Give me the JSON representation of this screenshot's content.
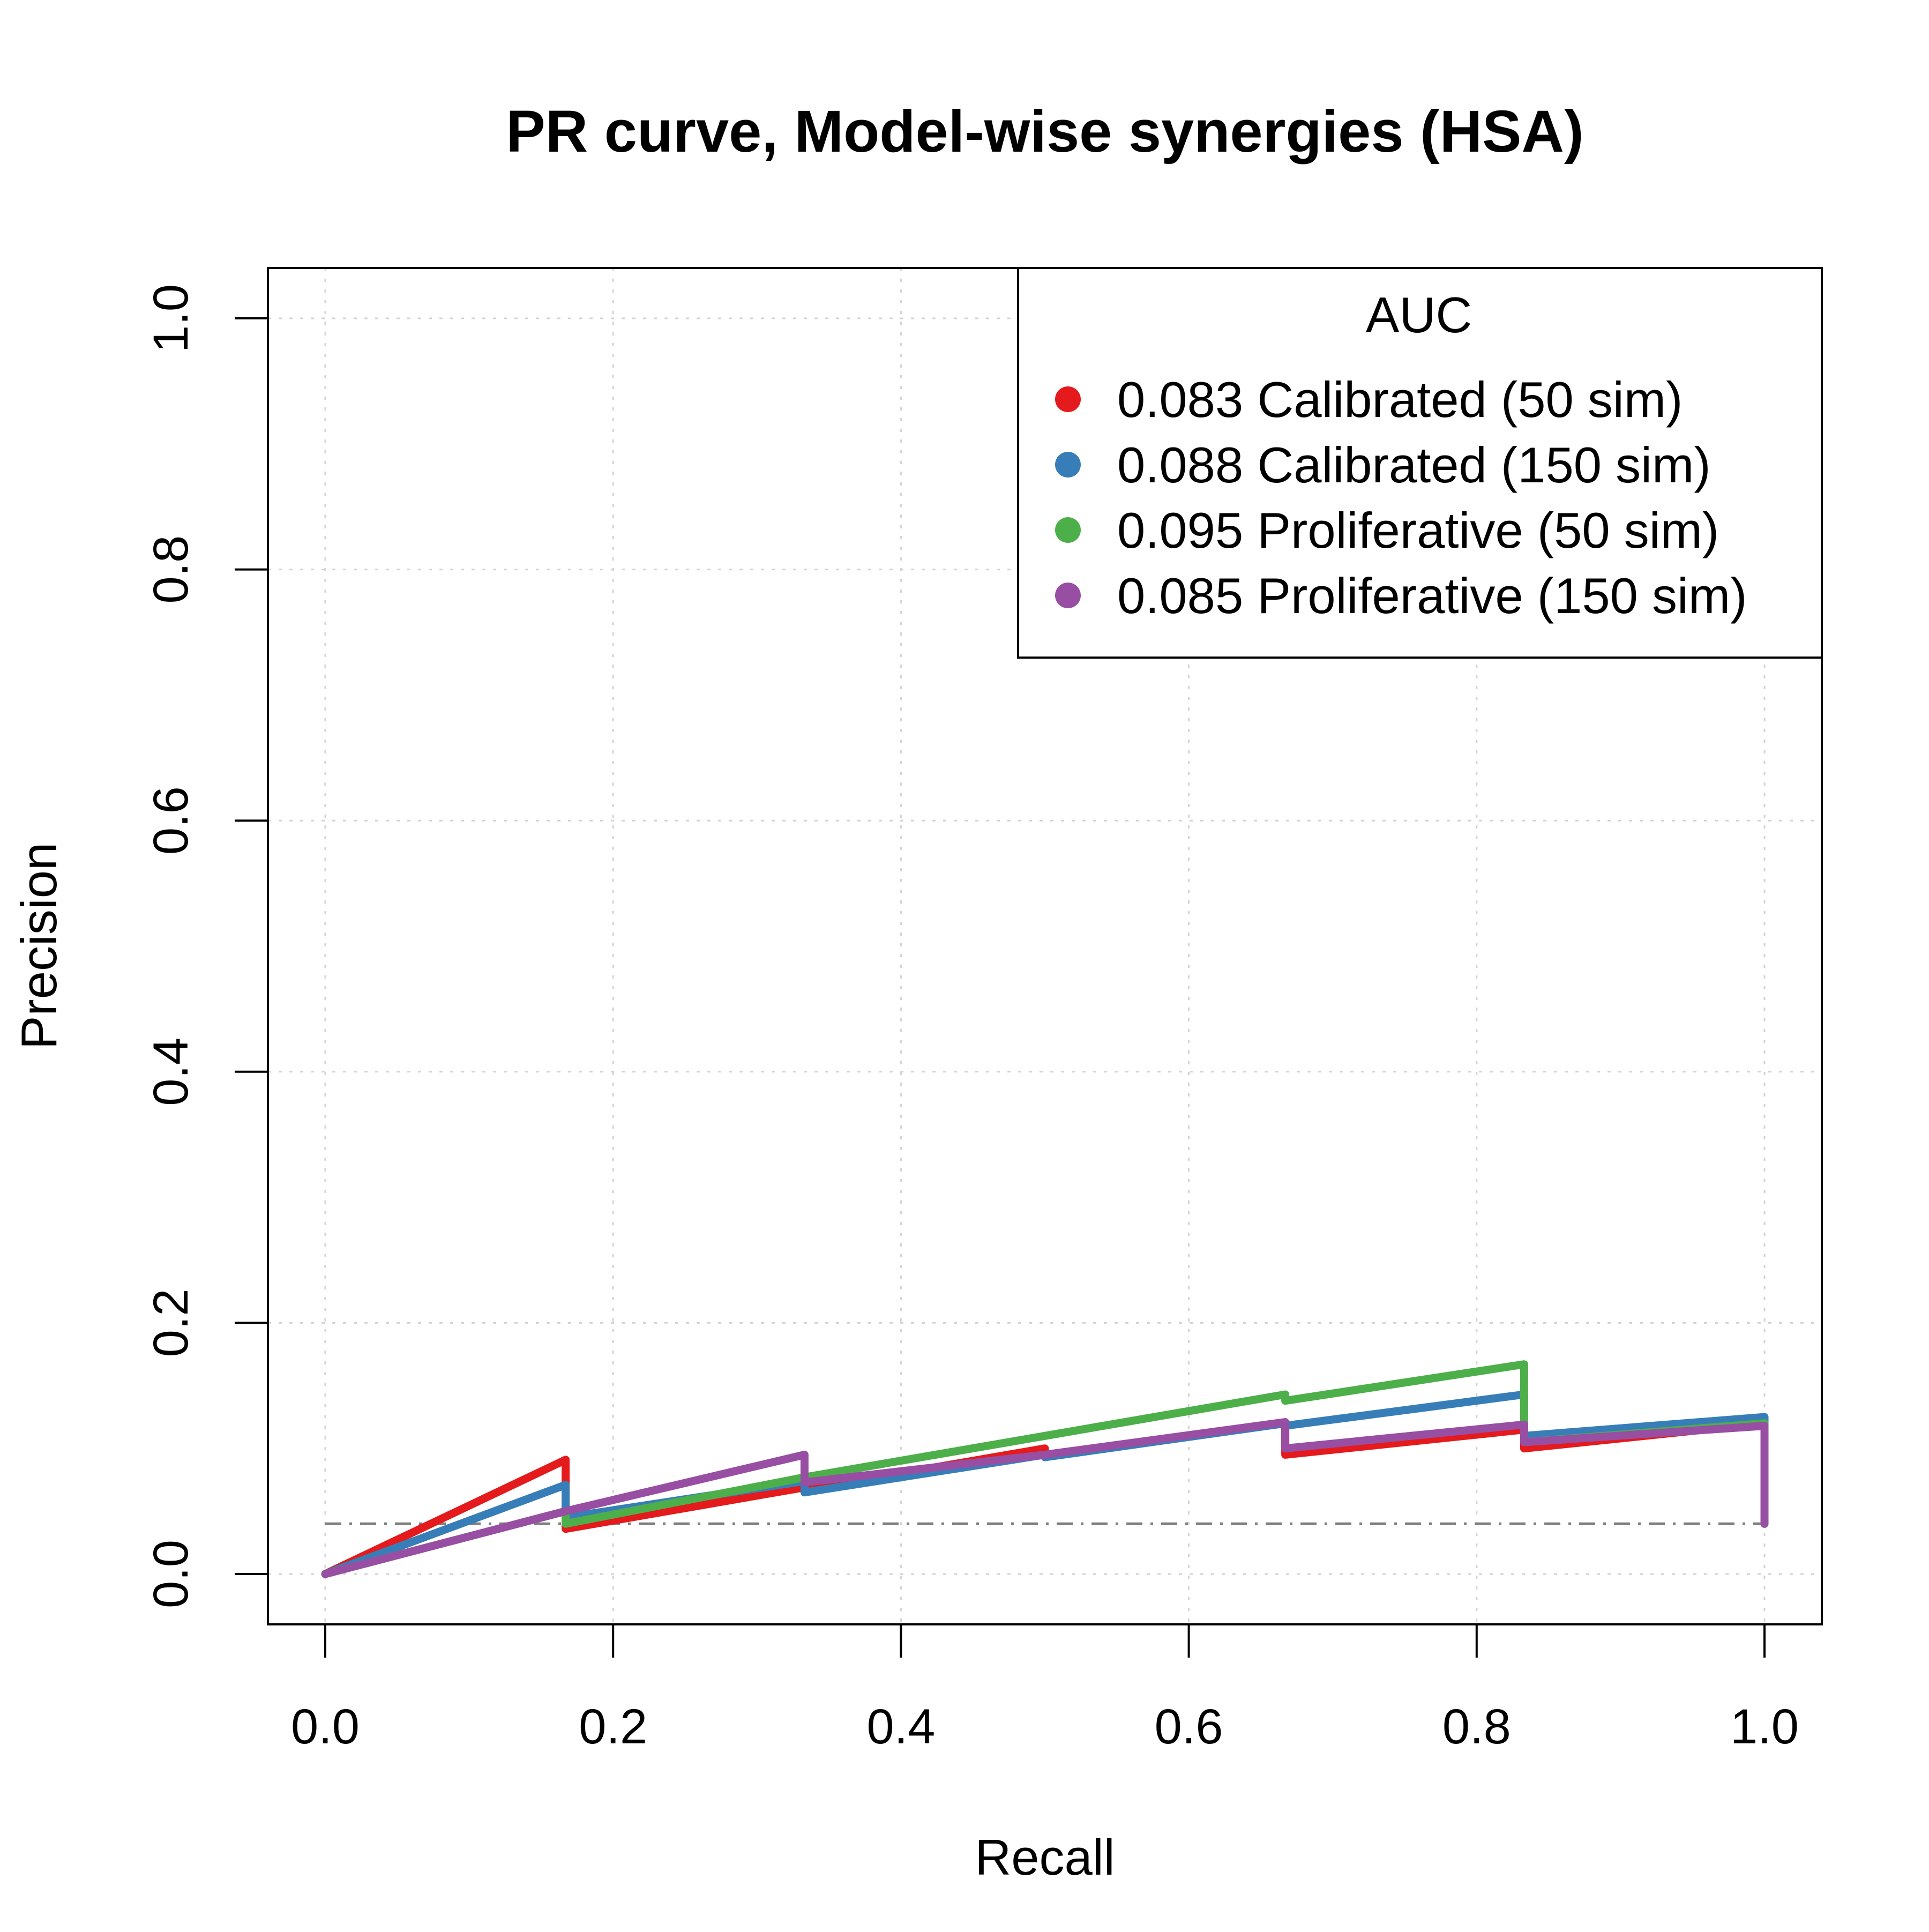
{
  "chart_data": {
    "type": "line",
    "title": "PR curve, Model-wise synergies (HSA)",
    "xlabel": "Recall",
    "ylabel": "Precision",
    "xlim": [
      0.0,
      1.0
    ],
    "ylim": [
      0.0,
      1.0
    ],
    "x_ticks": [
      "0.0",
      "0.2",
      "0.4",
      "0.6",
      "0.8",
      "1.0"
    ],
    "y_ticks": [
      "0.0",
      "0.2",
      "0.4",
      "0.6",
      "0.8",
      "1.0"
    ],
    "grid": true,
    "legend": {
      "title": "AUC",
      "placement": "top-right"
    },
    "baseline": {
      "y": 0.04,
      "style": "dash-dot"
    },
    "series": [
      {
        "name": "0.083 Calibrated (50 sim)",
        "color": "#E41A1C",
        "x": [
          0.0,
          0.167,
          0.167,
          0.333,
          0.333,
          0.5,
          0.5,
          0.667,
          0.667,
          0.833,
          0.833,
          1.0,
          1.0
        ],
        "y": [
          0.0,
          0.091,
          0.036,
          0.069,
          0.067,
          0.1,
          0.095,
          0.12,
          0.095,
          0.115,
          0.1,
          0.12,
          0.04
        ]
      },
      {
        "name": "0.088 Calibrated (150 sim)",
        "color": "#377EB8",
        "x": [
          0.0,
          0.167,
          0.167,
          0.333,
          0.333,
          0.5,
          0.5,
          0.667,
          0.667,
          0.833,
          0.833,
          1.0,
          1.0
        ],
        "y": [
          0.0,
          0.071,
          0.045,
          0.074,
          0.065,
          0.095,
          0.093,
          0.12,
          0.118,
          0.143,
          0.11,
          0.125,
          0.04
        ]
      },
      {
        "name": "0.095 Proliferative (50 sim)",
        "color": "#4DAF4A",
        "x": [
          0.0,
          0.167,
          0.167,
          0.333,
          0.333,
          0.5,
          0.5,
          0.667,
          0.667,
          0.833,
          0.833,
          1.0,
          1.0
        ],
        "y": [
          0.0,
          0.05,
          0.04,
          0.077,
          0.077,
          0.11,
          0.11,
          0.143,
          0.138,
          0.167,
          0.105,
          0.12,
          0.04
        ]
      },
      {
        "name": "0.085 Proliferative (150 sim)",
        "color": "#984EA3",
        "x": [
          0.0,
          0.167,
          0.167,
          0.333,
          0.333,
          0.5,
          0.5,
          0.667,
          0.667,
          0.833,
          0.833,
          1.0,
          1.0
        ],
        "y": [
          0.0,
          0.05,
          0.05,
          0.095,
          0.073,
          0.095,
          0.095,
          0.121,
          0.1,
          0.119,
          0.105,
          0.118,
          0.04
        ]
      }
    ]
  }
}
